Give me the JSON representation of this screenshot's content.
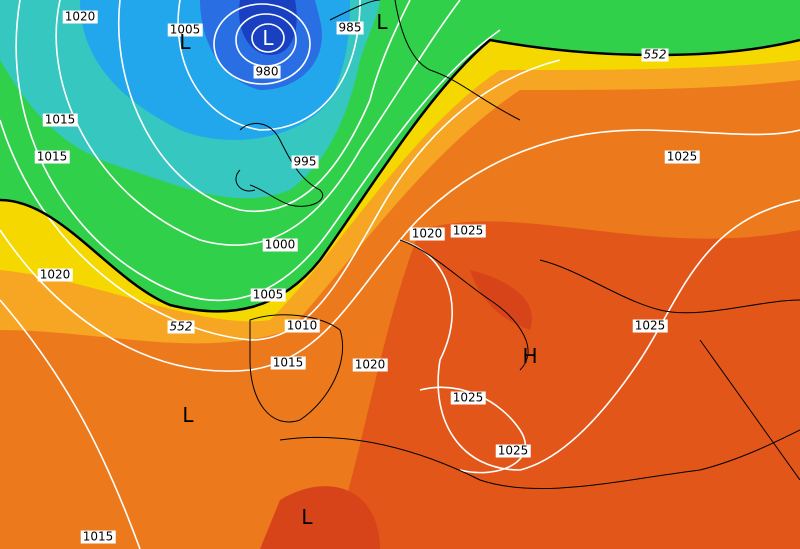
{
  "map": {
    "isobar_labels": [
      1020,
      1005,
      985,
      980,
      1015,
      1015,
      995,
      1020,
      1000,
      1005,
      1010,
      1015,
      1020,
      1020,
      1025,
      1025,
      1025,
      1025,
      1025,
      1015
    ],
    "thickness_labels": [
      552,
      552
    ],
    "centers": [
      "L",
      "L",
      "L",
      "L",
      "L",
      "H"
    ]
  }
}
